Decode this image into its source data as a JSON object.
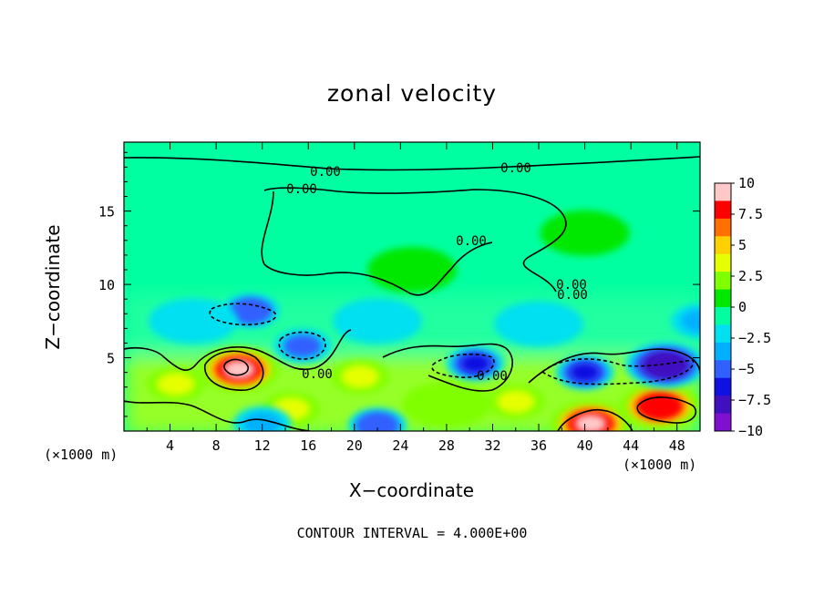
{
  "chart_data": {
    "type": "heatmap",
    "title": "zonal velocity",
    "xlabel": "X−coordinate",
    "ylabel": "Z−coordinate",
    "x_unit_label": "(×1000 m)",
    "x_ticks": [
      4,
      8,
      12,
      16,
      20,
      24,
      28,
      32,
      36,
      40,
      44,
      48
    ],
    "y_ticks": [
      5,
      10,
      15
    ],
    "xlim": [
      0,
      50
    ],
    "ylim": [
      0,
      19.7
    ],
    "colorbar": {
      "ticks": [
        "10",
        "7.5",
        "5",
        "2.5",
        "0",
        "−2.5",
        "−5",
        "−7.5",
        "−10"
      ],
      "range": [
        -10,
        10
      ],
      "colors": [
        "#ffc8c8",
        "#ff0000",
        "#ff7000",
        "#ffd000",
        "#e6ff00",
        "#80ff00",
        "#00e800",
        "#00ffa0",
        "#00e0f0",
        "#00b0ff",
        "#3060ff",
        "#1010e0",
        "#4010c0",
        "#8010d0"
      ]
    },
    "contour_labels": [
      "0.00",
      "0.00",
      "0.00",
      "0.00",
      "0.00",
      "0.00",
      "0.00",
      "0.00"
    ],
    "contour_interval_text": "CONTOUR INTERVAL =  4.000E+00",
    "features": [
      {
        "x": 10.0,
        "z": 4.2,
        "u": 9.5
      },
      {
        "x": 40.5,
        "z": 0.5,
        "u": 10.0
      },
      {
        "x": 46.5,
        "z": 1.7,
        "u": 8.5
      },
      {
        "x": 4.5,
        "z": 3.2,
        "u": 4.0
      },
      {
        "x": 20.5,
        "z": 3.7,
        "u": 4.0
      },
      {
        "x": 14.5,
        "z": 1.5,
        "u": 3.0
      },
      {
        "x": 28.0,
        "z": 1.8,
        "u": 2.5
      },
      {
        "x": 34.0,
        "z": 2.0,
        "u": 3.0
      },
      {
        "x": 11.0,
        "z": 8.2,
        "u": -5.5
      },
      {
        "x": 15.5,
        "z": 5.8,
        "u": -5.0
      },
      {
        "x": 30.5,
        "z": 4.6,
        "u": -6.0
      },
      {
        "x": 40.0,
        "z": 4.0,
        "u": -6.5
      },
      {
        "x": 47.0,
        "z": 4.5,
        "u": -8.0
      },
      {
        "x": 22.0,
        "z": 0.4,
        "u": -5.5
      },
      {
        "x": 12.0,
        "z": 0.5,
        "u": -3.0
      },
      {
        "x": 6.0,
        "z": 7.5,
        "u": -2.0
      },
      {
        "x": 22.0,
        "z": 7.5,
        "u": -2.0
      },
      {
        "x": 36.0,
        "z": 7.3,
        "u": -2.0
      },
      {
        "x": 50.0,
        "z": 7.5,
        "u": -3.0
      },
      {
        "x": 40.0,
        "z": 13.5,
        "u": 1.0
      },
      {
        "x": 25.0,
        "z": 11.0,
        "u": 1.0
      },
      {
        "x": 10.0,
        "z": 17.0,
        "u": -1.0
      }
    ]
  }
}
